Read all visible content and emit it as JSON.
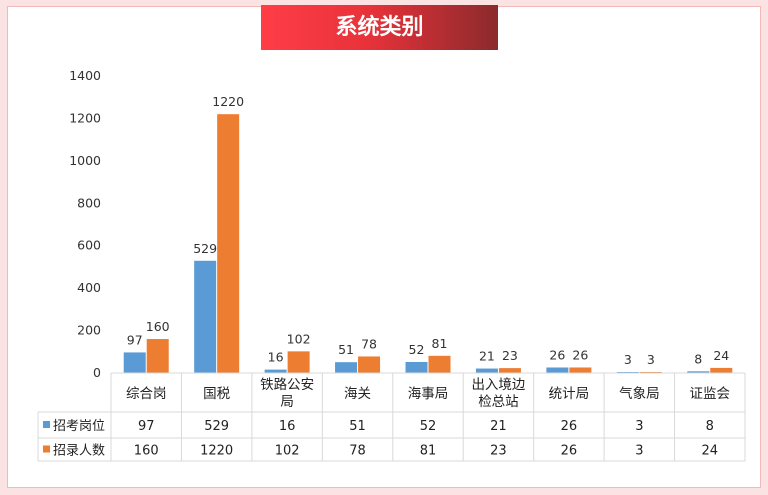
{
  "title": "系统类别",
  "colors": {
    "series1": "#5b9bd5",
    "series2": "#ed7d31",
    "accent": "#e8323a"
  },
  "chart_data": {
    "type": "bar",
    "title": "系统类别",
    "categories": [
      "综合岗",
      "国税",
      "铁路公安局",
      "海关",
      "海事局",
      "出入境边检总站",
      "统计局",
      "气象局",
      "证监会"
    ],
    "category_lines": [
      [
        "综合岗"
      ],
      [
        "国税"
      ],
      [
        "铁路公安",
        "局"
      ],
      [
        "海关"
      ],
      [
        "海事局"
      ],
      [
        "出入境边",
        "检总站"
      ],
      [
        "统计局"
      ],
      [
        "气象局"
      ],
      [
        "证监会"
      ]
    ],
    "series": [
      {
        "name": "招考岗位",
        "values": [
          97,
          529,
          16,
          51,
          52,
          21,
          26,
          3,
          8
        ],
        "color": "#5b9bd5"
      },
      {
        "name": "招录人数",
        "values": [
          160,
          1220,
          102,
          78,
          81,
          23,
          26,
          3,
          24
        ],
        "color": "#ed7d31"
      }
    ],
    "ylim": [
      0,
      1400
    ],
    "yticks": [
      0,
      200,
      400,
      600,
      800,
      1000,
      1200,
      1400
    ],
    "grid": false,
    "legend": "data-table",
    "data_table": true
  }
}
